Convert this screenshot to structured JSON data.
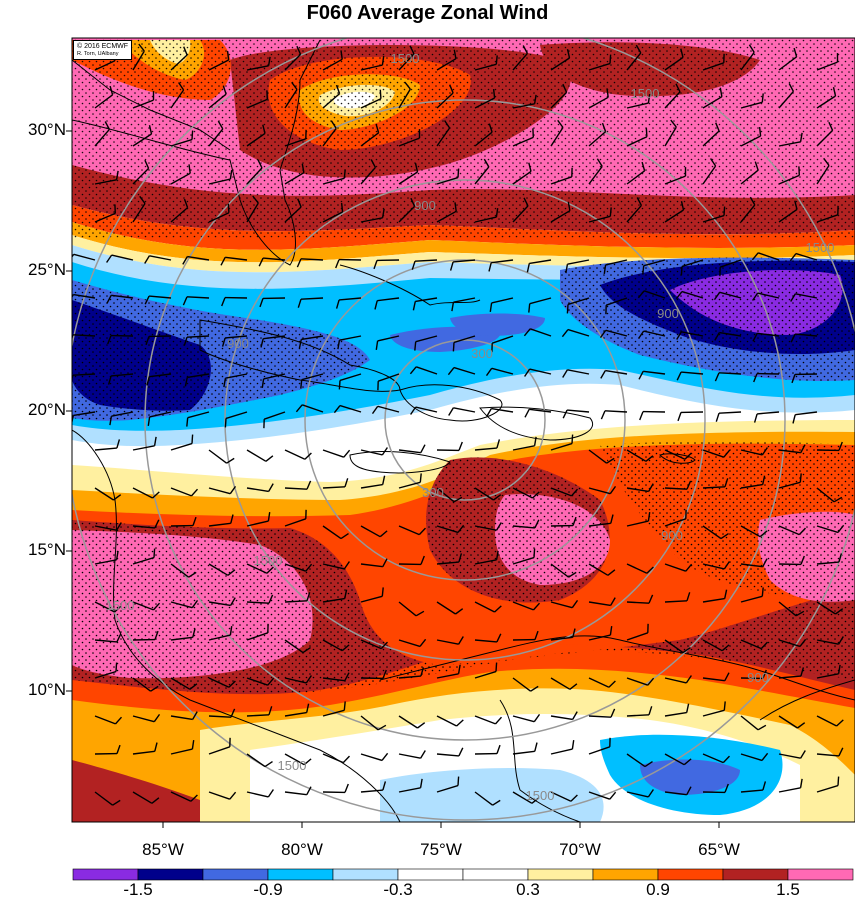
{
  "title": "F060 Average Zonal Wind",
  "credit": {
    "line1": "© 2016 ECMWF",
    "line2": "R. Torn, UAlbany"
  },
  "lat_labels": [
    "30°N",
    "25°N",
    "20°N",
    "15°N",
    "10°N"
  ],
  "lon_labels": [
    "85°W",
    "80°W",
    "75°W",
    "70°W",
    "65°W"
  ],
  "colorbar": {
    "colors": [
      "#8a2be2",
      "#00008b",
      "#4169e1",
      "#00bfff",
      "#b0e0ff",
      "#ffffff",
      "#ffffff",
      "#fff0a0",
      "#ffa500",
      "#ff4500",
      "#b22222",
      "#ff69b4"
    ],
    "labels": [
      "-1.5",
      "-0.9",
      "-0.3",
      "0.3",
      "0.9",
      "1.5"
    ]
  },
  "contour_labels": [
    "1500",
    "1500",
    "900",
    "1500",
    "900",
    "900",
    "300",
    "300",
    "900",
    "1500",
    "1500",
    "900",
    "1500",
    "1500"
  ],
  "colors": {
    "purple": "#8a2be2",
    "navy": "#00008b",
    "blue": "#4169e1",
    "sky": "#00bfff",
    "lightblue": "#b0e0ff",
    "yellow": "#fff0a0",
    "orange": "#ffa500",
    "redorange": "#ff4500",
    "darkred": "#b22222",
    "pink": "#ff69b4",
    "circle": "#999999"
  }
}
